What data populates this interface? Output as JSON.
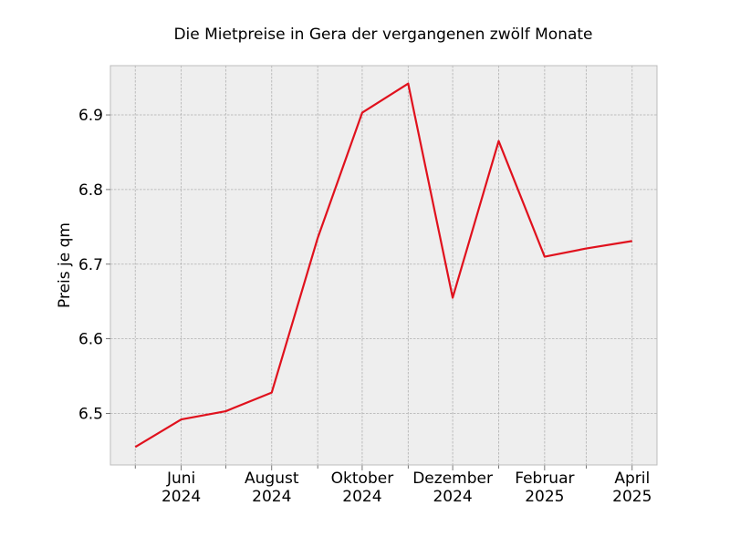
{
  "chart_data": {
    "type": "line",
    "title": "Die Mietpreise in Gera der vergangenen zwölf Monate",
    "xlabel": "",
    "ylabel": "Preis je qm",
    "x": [
      "2024-05",
      "2024-06",
      "2024-07",
      "2024-08",
      "2024-09",
      "2024-10",
      "2024-11",
      "2024-12",
      "2025-01",
      "2025-02",
      "2025-03",
      "2025-04"
    ],
    "series": [
      {
        "color": "#e0111d",
        "values": [
          6.455,
          6.492,
          6.503,
          6.528,
          6.735,
          6.903,
          6.942,
          6.655,
          6.865,
          6.71,
          6.721,
          6.731
        ]
      }
    ],
    "x_ticks": [
      {
        "x": "2024-06",
        "label": [
          "Juni",
          "2024"
        ]
      },
      {
        "x": "2024-08",
        "label": [
          "August",
          "2024"
        ]
      },
      {
        "x": "2024-10",
        "label": [
          "Oktober",
          "2024"
        ]
      },
      {
        "x": "2024-12",
        "label": [
          "Dezember",
          "2024"
        ]
      },
      {
        "x": "2025-02",
        "label": [
          "Februar",
          "2025"
        ]
      },
      {
        "x": "2025-04",
        "label": [
          "April",
          "2025"
        ]
      }
    ],
    "y_ticks": [
      "6.5",
      "6.6",
      "6.7",
      "6.8",
      "6.9"
    ],
    "ylim": [
      6.431,
      6.966
    ],
    "grid": true,
    "legend": "none",
    "background": "#eeeeee"
  }
}
